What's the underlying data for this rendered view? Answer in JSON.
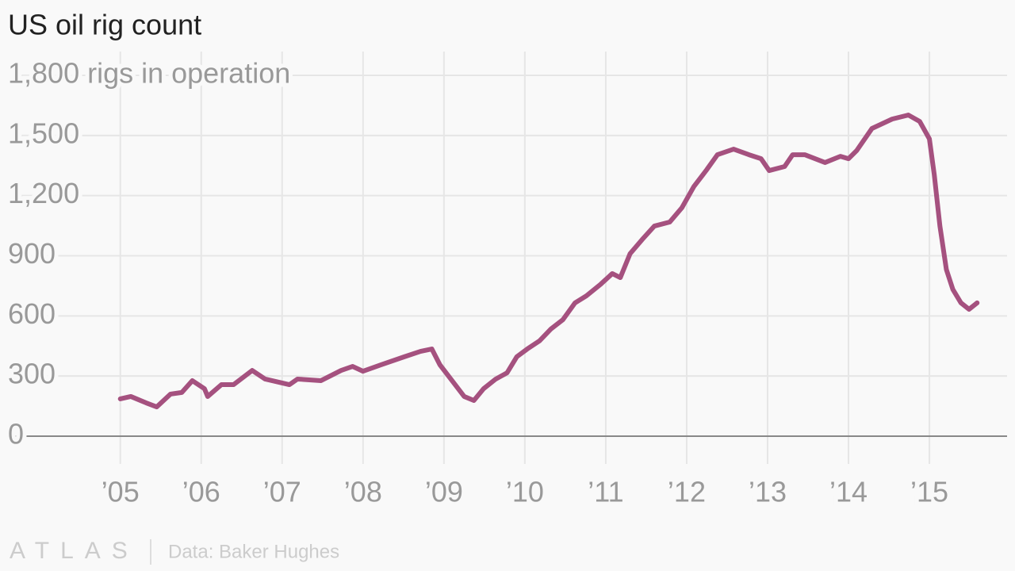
{
  "chart_data": {
    "type": "line",
    "title": "US oil rig count",
    "source": "Data: Baker Hughes",
    "brand": "ATLAS",
    "x": [
      2005.0,
      2005.13,
      2005.32,
      2005.45,
      2005.62,
      2005.76,
      2005.89,
      2006.04,
      2006.08,
      2006.25,
      2006.4,
      2006.63,
      2006.79,
      2007.09,
      2007.19,
      2007.48,
      2007.73,
      2007.87,
      2008.0,
      2008.22,
      2008.51,
      2008.71,
      2008.85,
      2008.95,
      2009.1,
      2009.25,
      2009.37,
      2009.49,
      2009.64,
      2009.78,
      2009.9,
      2010.03,
      2010.18,
      2010.32,
      2010.47,
      2010.62,
      2010.76,
      2010.94,
      2011.08,
      2011.18,
      2011.3,
      2011.45,
      2011.6,
      2011.79,
      2011.94,
      2012.09,
      2012.24,
      2012.38,
      2012.58,
      2012.77,
      2012.92,
      2013.02,
      2013.21,
      2013.31,
      2013.46,
      2013.71,
      2013.9,
      2014.0,
      2014.1,
      2014.29,
      2014.54,
      2014.74,
      2014.88,
      2015.0,
      2015.06,
      2015.13,
      2015.21,
      2015.29,
      2015.39,
      2015.49,
      2015.59
    ],
    "series": [
      {
        "name": "Rigs in operation",
        "color": "#a5517f",
        "values": [
          186,
          198,
          166,
          146,
          210,
          218,
          277,
          237,
          198,
          257,
          257,
          328,
          285,
          257,
          285,
          277,
          328,
          348,
          324,
          356,
          396,
          423,
          435,
          356,
          277,
          198,
          178,
          237,
          285,
          316,
          396,
          435,
          475,
          534,
          581,
          665,
          700,
          759,
          811,
          791,
          910,
          981,
          1048,
          1068,
          1139,
          1246,
          1325,
          1404,
          1432,
          1404,
          1384,
          1325,
          1345,
          1404,
          1404,
          1365,
          1396,
          1384,
          1424,
          1535,
          1582,
          1602,
          1570,
          1483,
          1305,
          1048,
          831,
          732,
          665,
          633,
          665
        ]
      }
    ],
    "xlim": [
      2003.66,
      2015.96
    ],
    "xticks": [
      {
        "value": 2005,
        "label": "’05"
      },
      {
        "value": 2006,
        "label": "’06"
      },
      {
        "value": 2007,
        "label": "’07"
      },
      {
        "value": 2008,
        "label": "’08"
      },
      {
        "value": 2009,
        "label": "’09"
      },
      {
        "value": 2010,
        "label": "’10"
      },
      {
        "value": 2011,
        "label": "’11"
      },
      {
        "value": 2012,
        "label": "’12"
      },
      {
        "value": 2013,
        "label": "’13"
      },
      {
        "value": 2014,
        "label": "’14"
      },
      {
        "value": 2015,
        "label": "’15"
      }
    ],
    "ylim": [
      0,
      1800
    ],
    "yticks": [
      0,
      300,
      600,
      900,
      {
        "value": 1200,
        "label": "1,200"
      },
      {
        "value": 1500,
        "label": "1,500"
      },
      {
        "value": 1800,
        "label": "1,800 rigs in operation"
      }
    ],
    "grid": true
  }
}
